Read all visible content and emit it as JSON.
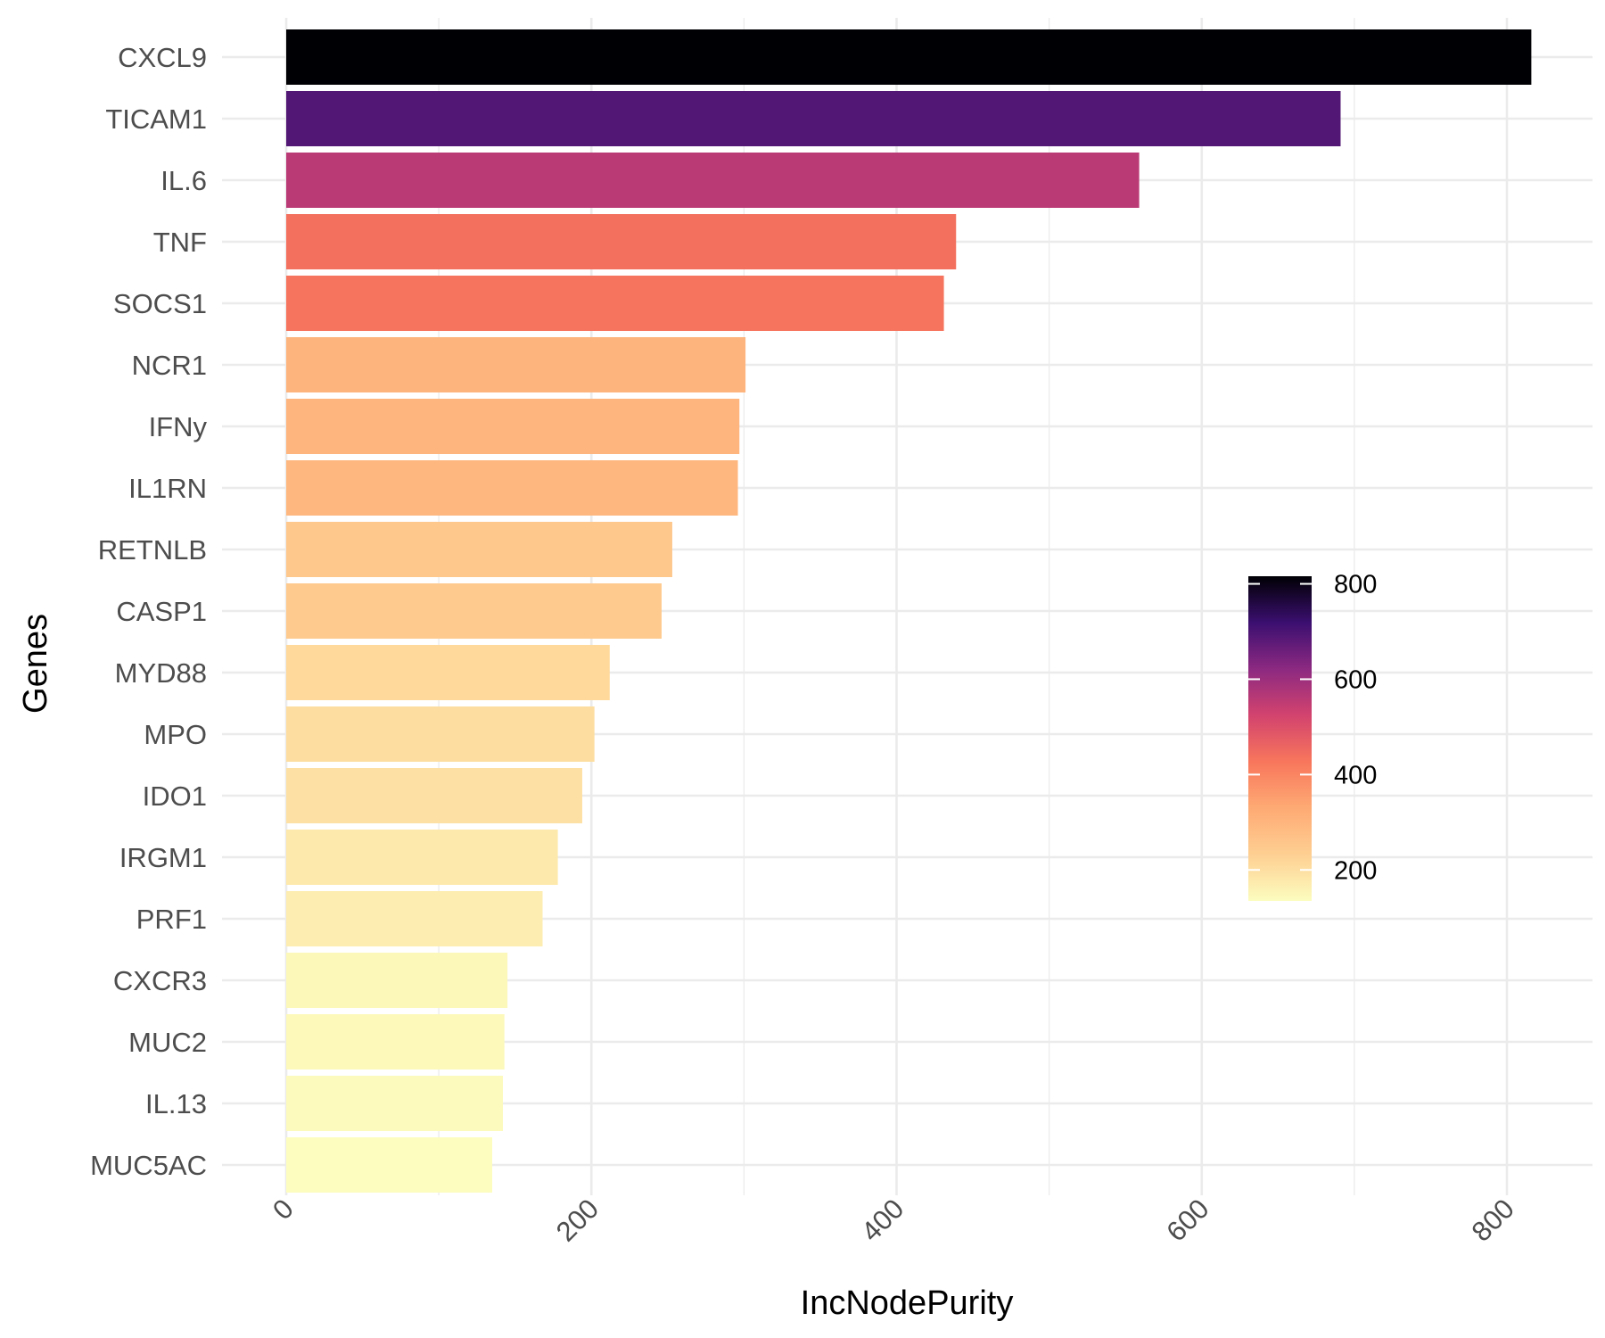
{
  "chart_data": {
    "type": "bar",
    "orientation": "horizontal",
    "xlabel": "IncNodePurity",
    "ylabel": "Genes",
    "xlim": [
      -25,
      855
    ],
    "x_ticks": [
      0,
      200,
      400,
      600,
      800
    ],
    "grid": true,
    "categories": [
      "CXCL9",
      "TICAM1",
      "IL.6",
      "TNF",
      "SOCS1",
      "NCR1",
      "IFNy",
      "IL1RN",
      "RETNLB",
      "CASP1",
      "MYD88",
      "MPO",
      "IDO1",
      "IRGM1",
      "PRF1",
      "CXCR3",
      "MUC2",
      "IL.13",
      "MUC5AC"
    ],
    "values": [
      816,
      691,
      559,
      439,
      431,
      301,
      297,
      296,
      253,
      246,
      212,
      202,
      194,
      178,
      168,
      145,
      143,
      142,
      135
    ],
    "colorbar": {
      "palette": "magma",
      "range": [
        135,
        816
      ],
      "ticks": [
        200,
        400,
        600,
        800
      ],
      "placement": "right, inside plot"
    },
    "palette_stops": [
      "#fcfdbf",
      "#fecf92",
      "#feaa74",
      "#f8765c",
      "#d3436e",
      "#8c2981",
      "#3b0f70",
      "#000004"
    ]
  }
}
